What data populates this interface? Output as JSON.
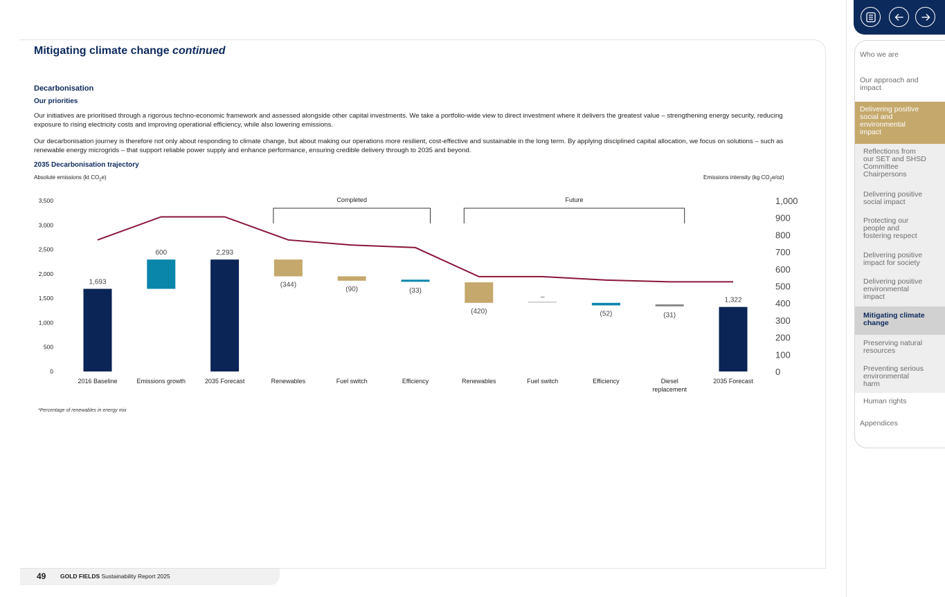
{
  "header": {
    "title_main": "Mitigating climate change",
    "title_emph": "continued"
  },
  "content": {
    "section_heading": "Decarbonisation",
    "sub_heading": "Our priorities",
    "para1": "Our initiatives are prioritised through a rigorous techno-economic framework and assessed alongside other capital investments. We take a portfolio-wide view to direct investment where it delivers the greatest value – strengthening energy security, reducing exposure to rising electricity costs and improving operational efficiency, while also lowering emissions.",
    "para2": "Our decarbonisation journey is therefore not only about responding to climate change, but about making our operations more resilient, cost-effective and sustainable in the long term. By applying disciplined capital allocation, we focus on solutions – such as renewable energy microgrids – that support reliable power supply and enhance performance, ensuring credible delivery through to 2035 and beyond.",
    "chart_heading": "2035 Decarbonisation trajectory",
    "left_axis_caption": "Absolute emissions (kt CO",
    "left_axis_caption_sub": "2",
    "left_axis_caption_end": "e)",
    "right_axis_caption": "Emissions intensity (kg CO",
    "right_axis_caption_sub": "2",
    "right_axis_caption_end": "e/oz)",
    "footnote": "*Percentage of renewables in energy mix"
  },
  "chart_data": {
    "type": "bar",
    "categories": [
      "2016 Baseline",
      "Emissions growth",
      "2035 Forecast",
      "Renewables",
      "Fuel switch",
      "Efficiency",
      "Renewables",
      "Fuel switch",
      "Efficiency",
      "Diesel replacement",
      "2035 Forecast"
    ],
    "bars": [
      {
        "kind": "total",
        "base": 0,
        "top": 1693,
        "label": "1,693",
        "color": "#0b2556"
      },
      {
        "kind": "delta",
        "base": 1693,
        "top": 2293,
        "label": "600",
        "color": "#0b86ab"
      },
      {
        "kind": "total",
        "base": 0,
        "top": 2293,
        "label": "2,293",
        "color": "#0b2556"
      },
      {
        "kind": "delta",
        "base": 1949,
        "top": 2293,
        "label": "(344)",
        "color": "#c5a86b"
      },
      {
        "kind": "delta",
        "base": 1859,
        "top": 1949,
        "label": "(90)",
        "color": "#c5a86b"
      },
      {
        "kind": "delta",
        "base": 1826,
        "top": 1859,
        "label": "(33)",
        "color": "#0b86ab"
      },
      {
        "kind": "delta",
        "base": 1406,
        "top": 1826,
        "label": "(420)",
        "color": "#c5a86b"
      },
      {
        "kind": "delta",
        "base": 1406,
        "top": 1406,
        "label": "–",
        "color": "#aaaaaa"
      },
      {
        "kind": "delta",
        "base": 1354,
        "top": 1406,
        "label": "(52)",
        "color": "#0b86ab"
      },
      {
        "kind": "delta",
        "base": 1322,
        "top": 1354,
        "label": "(31)",
        "color": "#8a8a8a"
      },
      {
        "kind": "total",
        "base": 0,
        "top": 1322,
        "label": "1,322",
        "color": "#0b2556"
      }
    ],
    "intensity_line": {
      "color": "#8a1538",
      "values": [
        770,
        905,
        905,
        770,
        740,
        725,
        555,
        555,
        535,
        525,
        525
      ]
    },
    "left_axis": {
      "ylim": [
        0,
        3500
      ],
      "ticks": [
        0,
        500,
        1000,
        1500,
        2000,
        2500,
        3000,
        3500
      ],
      "tick_labels": [
        "0",
        "500",
        "1,000",
        "1,500",
        "2,000",
        "2,500",
        "3,000",
        "3,500"
      ]
    },
    "right_axis": {
      "ylim": [
        0,
        1000
      ],
      "ticks": [
        0,
        100,
        200,
        300,
        400,
        500,
        600,
        700,
        800,
        900,
        1000
      ],
      "tick_labels": [
        "0",
        "100",
        "200",
        "300",
        "400",
        "500",
        "600",
        "700",
        "800",
        "900",
        "1,000"
      ]
    },
    "groups": [
      {
        "label": "Completed",
        "from": 3,
        "to": 5
      },
      {
        "label": "Future",
        "from": 6,
        "to": 9
      }
    ]
  },
  "footer": {
    "page_number": "49",
    "brand_bold": "GOLD FIELDS",
    "brand_rest": "Sustainability Report 2025"
  },
  "sidebar": {
    "items": [
      {
        "lines": [
          "Who we are"
        ]
      },
      {
        "lines": [
          "Our approach and",
          "impact"
        ]
      },
      {
        "lines": [
          "Delivering positive",
          "social and",
          "environmental",
          "impact"
        ]
      },
      {
        "lines": [
          "Reflections from",
          "our SET and SHSD",
          "Committee",
          "Chairpersons"
        ]
      },
      {
        "lines": [
          "Delivering positive",
          "social impact"
        ]
      },
      {
        "lines": [
          "Protecting our",
          "people and",
          "fostering respect"
        ]
      },
      {
        "lines": [
          "Delivering positive",
          "impact for society"
        ]
      },
      {
        "lines": [
          "Delivering positive",
          "environmental",
          "impact"
        ]
      },
      {
        "lines": [
          "Mitigating climate",
          "change"
        ]
      },
      {
        "lines": [
          "Preserving natural",
          "resources"
        ]
      },
      {
        "lines": [
          "Preventing serious",
          "environmental",
          "harm"
        ]
      },
      {
        "lines": [
          "Human rights"
        ]
      },
      {
        "lines": [
          "Appendices"
        ]
      }
    ]
  },
  "nav_icons": [
    "contents-icon",
    "arrow-left-icon",
    "arrow-right-icon"
  ]
}
